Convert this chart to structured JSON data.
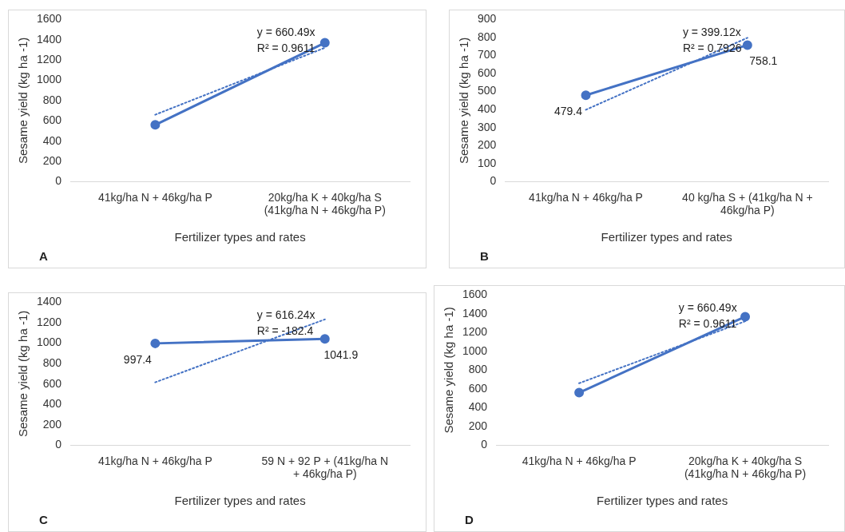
{
  "chart_data": [
    {
      "type": "line",
      "xlabel": "Fertilizer types and rates",
      "ylabel": "Sesame yield (kg ha -1)",
      "categories": [
        "41kg/ha N + 46kg/ha P",
        "20kg/ha K + 40kg/ha S (41kg/ha N + 46kg/ha P)"
      ],
      "series": [
        {
          "name": null,
          "color": "#4472c4",
          "values": [
            560,
            1370
          ],
          "marker": "circle"
        },
        {
          "type": "line",
          "color": "#4472c4",
          "values": [
            660.49,
            1320.98
          ],
          "line_style": "dotted",
          "marker": "none"
        }
      ],
      "ylim": [
        0,
        1600
      ],
      "yticks": [
        0,
        200,
        400,
        600,
        800,
        1000,
        1200,
        1400,
        1600
      ],
      "grid": false,
      "legend": false,
      "annotations": [
        "y = 660.49x",
        "R² = 0.9611",
        "A"
      ]
    },
    {
      "type": "line",
      "xlabel": "Fertilizer types and rates",
      "ylabel": "Sesame yield (kg ha -1)",
      "categories": [
        "41kg/ha N + 46kg/ha P",
        "40 kg/ha S + (41kg/ha N + 46kg/ha P)"
      ],
      "series": [
        {
          "color": "#4472c4",
          "values": [
            479.4,
            758.1
          ],
          "marker": "circle",
          "value_labels": [
            "479.4",
            "758.1"
          ]
        },
        {
          "type": "line",
          "color": "#4472c4",
          "values": [
            399.12,
            798.24
          ],
          "line_style": "dotted",
          "marker": "none"
        }
      ],
      "ylim": [
        0,
        900
      ],
      "yticks": [
        0,
        100,
        200,
        300,
        400,
        500,
        600,
        700,
        800,
        900
      ],
      "grid": false,
      "legend": false,
      "annotations": [
        "y = 399.12x",
        "R² = 0.7926",
        "B"
      ]
    },
    {
      "type": "line",
      "xlabel": "Fertilizer types and rates",
      "ylabel": "Sesame yield (kg ha -1)",
      "categories": [
        "41kg/ha N + 46kg/ha P",
        "59 N + 92 P + (41kg/ha N + 46kg/ha P)"
      ],
      "series": [
        {
          "color": "#4472c4",
          "values": [
            997.4,
            1041.9
          ],
          "marker": "circle",
          "value_labels": [
            "997.4",
            "1041.9"
          ]
        },
        {
          "type": "line",
          "color": "#4472c4",
          "values": [
            616.24,
            1232.48
          ],
          "line_style": "dotted",
          "marker": "none"
        }
      ],
      "ylim": [
        0,
        1400
      ],
      "yticks": [
        0,
        200,
        400,
        600,
        800,
        1000,
        1200,
        1400
      ],
      "grid": false,
      "legend": false,
      "annotations": [
        "y = 616.24x",
        "R² = -182.4",
        "C"
      ]
    },
    {
      "type": "line",
      "xlabel": "Fertilizer types and rates",
      "ylabel": "Sesame yield (kg ha -1)",
      "categories": [
        "41kg/ha N + 46kg/ha P",
        "20kg/ha K + 40kg/ha S (41kg/ha N + 46kg/ha P)"
      ],
      "series": [
        {
          "color": "#4472c4",
          "values": [
            560,
            1370
          ],
          "marker": "circle"
        },
        {
          "type": "line",
          "color": "#4472c4",
          "values": [
            660.49,
            1320.98
          ],
          "line_style": "dotted",
          "marker": "none"
        }
      ],
      "ylim": [
        0,
        1600
      ],
      "yticks": [
        0,
        200,
        400,
        600,
        800,
        1000,
        1200,
        1400,
        1600
      ],
      "grid": false,
      "legend": false,
      "annotations": [
        "y = 660.49x",
        "R² = 0.9611",
        "D"
      ]
    }
  ]
}
